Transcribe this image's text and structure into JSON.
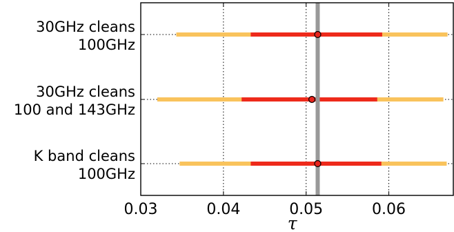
{
  "chart_data": {
    "type": "scatter",
    "title": "",
    "xlabel": "τ",
    "ylabel": "",
    "xlim": [
      0.03,
      0.0678
    ],
    "xticks": [
      "0.03",
      "0.04",
      "0.05",
      "0.06"
    ],
    "xtick_values": [
      0.03,
      0.04,
      0.05,
      0.06
    ],
    "grid": "x-dotted",
    "reference_line": {
      "x": 0.0514,
      "color": "#999999"
    },
    "colors": {
      "inner_interval": "#ee2a1b",
      "outer_interval": "#f9c35c",
      "point": "#e8231c"
    },
    "rows": [
      {
        "label_line1": "30GHz cleans",
        "label_line2": "100GHz",
        "value": 0.0514,
        "inner": [
          0.0433,
          0.0592
        ],
        "outer": [
          0.0343,
          0.0671
        ]
      },
      {
        "label_line1": "30GHz cleans",
        "label_line2": "100 and 143GHz",
        "value": 0.0507,
        "inner": [
          0.0422,
          0.0586
        ],
        "outer": [
          0.032,
          0.0666
        ]
      },
      {
        "label_line1": "K band cleans",
        "label_line2": "100GHz",
        "value": 0.0514,
        "inner": [
          0.0433,
          0.0591
        ],
        "outer": [
          0.0347,
          0.067
        ]
      }
    ]
  }
}
